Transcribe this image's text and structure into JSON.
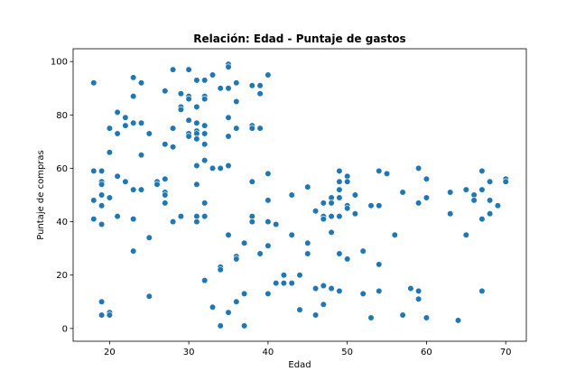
{
  "chart_data": {
    "type": "scatter",
    "title": "Relación: Edad - Puntaje de gastos",
    "xlabel": "Edad",
    "ylabel": "Puntaje de compras",
    "xlim": [
      15.4,
      72.6
    ],
    "ylim": [
      -4.8,
      104.8
    ],
    "xticks": [
      20,
      30,
      40,
      50,
      60,
      70
    ],
    "yticks": [
      0,
      20,
      40,
      60,
      80,
      100
    ],
    "grid": false,
    "marker_color": "#1f77b4",
    "points": [
      [
        18,
        92
      ],
      [
        18,
        59
      ],
      [
        18,
        48
      ],
      [
        18,
        41
      ],
      [
        19,
        59
      ],
      [
        19,
        55
      ],
      [
        19,
        54
      ],
      [
        19,
        50
      ],
      [
        19,
        46
      ],
      [
        19,
        39
      ],
      [
        19,
        10
      ],
      [
        19,
        5
      ],
      [
        20,
        75
      ],
      [
        20,
        66
      ],
      [
        20,
        49
      ],
      [
        20,
        6
      ],
      [
        20,
        5
      ],
      [
        21,
        81
      ],
      [
        21,
        73
      ],
      [
        21,
        57
      ],
      [
        21,
        42
      ],
      [
        22,
        79
      ],
      [
        22,
        76
      ],
      [
        22,
        55
      ],
      [
        23,
        94
      ],
      [
        23,
        87
      ],
      [
        23,
        77
      ],
      [
        23,
        52
      ],
      [
        23,
        41
      ],
      [
        23,
        29
      ],
      [
        24,
        92
      ],
      [
        24,
        77
      ],
      [
        24,
        65
      ],
      [
        24,
        52
      ],
      [
        25,
        73
      ],
      [
        25,
        34
      ],
      [
        25,
        12
      ],
      [
        26,
        55
      ],
      [
        26,
        54
      ],
      [
        27,
        89
      ],
      [
        27,
        69
      ],
      [
        27,
        56
      ],
      [
        27,
        51
      ],
      [
        27,
        50
      ],
      [
        27,
        47
      ],
      [
        28,
        97
      ],
      [
        28,
        75
      ],
      [
        28,
        68
      ],
      [
        28,
        40
      ],
      [
        29,
        88
      ],
      [
        29,
        83
      ],
      [
        29,
        82
      ],
      [
        29,
        42
      ],
      [
        30,
        97
      ],
      [
        30,
        87
      ],
      [
        30,
        86
      ],
      [
        30,
        78
      ],
      [
        30,
        73
      ],
      [
        30,
        72
      ],
      [
        31,
        93
      ],
      [
        31,
        83
      ],
      [
        31,
        77
      ],
      [
        31,
        74
      ],
      [
        31,
        73
      ],
      [
        31,
        71
      ],
      [
        31,
        61
      ],
      [
        31,
        54
      ],
      [
        31,
        42
      ],
      [
        31,
        40
      ],
      [
        32,
        93
      ],
      [
        32,
        87
      ],
      [
        32,
        86
      ],
      [
        32,
        76
      ],
      [
        32,
        73
      ],
      [
        32,
        69
      ],
      [
        32,
        63
      ],
      [
        32,
        47
      ],
      [
        32,
        42
      ],
      [
        32,
        18
      ],
      [
        33,
        95
      ],
      [
        33,
        60
      ],
      [
        33,
        8
      ],
      [
        34,
        90
      ],
      [
        34,
        60
      ],
      [
        34,
        23
      ],
      [
        34,
        22
      ],
      [
        34,
        1
      ],
      [
        35,
        99
      ],
      [
        35,
        98
      ],
      [
        35,
        90
      ],
      [
        35,
        79
      ],
      [
        35,
        72
      ],
      [
        35,
        61
      ],
      [
        35,
        35
      ],
      [
        35,
        6
      ],
      [
        36,
        92
      ],
      [
        36,
        85
      ],
      [
        36,
        75
      ],
      [
        36,
        27
      ],
      [
        36,
        26
      ],
      [
        36,
        10
      ],
      [
        37,
        32
      ],
      [
        37,
        13
      ],
      [
        37,
        1
      ],
      [
        38,
        91
      ],
      [
        38,
        76
      ],
      [
        38,
        75
      ],
      [
        38,
        55
      ],
      [
        38,
        42
      ],
      [
        38,
        40
      ],
      [
        39,
        91
      ],
      [
        39,
        88
      ],
      [
        39,
        75
      ],
      [
        39,
        28
      ],
      [
        40,
        95
      ],
      [
        40,
        58
      ],
      [
        40,
        48
      ],
      [
        40,
        40
      ],
      [
        40,
        31
      ],
      [
        40,
        13
      ],
      [
        41,
        39
      ],
      [
        41,
        17
      ],
      [
        42,
        20
      ],
      [
        42,
        17
      ],
      [
        43,
        50
      ],
      [
        43,
        35
      ],
      [
        43,
        17
      ],
      [
        44,
        20
      ],
      [
        44,
        7
      ],
      [
        45,
        53
      ],
      [
        45,
        32
      ],
      [
        45,
        28
      ],
      [
        46,
        44
      ],
      [
        46,
        15
      ],
      [
        46,
        5
      ],
      [
        47,
        47
      ],
      [
        47,
        42
      ],
      [
        47,
        41
      ],
      [
        47,
        16
      ],
      [
        47,
        9
      ],
      [
        48,
        49
      ],
      [
        48,
        47
      ],
      [
        48,
        42
      ],
      [
        48,
        36
      ],
      [
        48,
        15
      ],
      [
        49,
        59
      ],
      [
        49,
        55
      ],
      [
        49,
        52
      ],
      [
        49,
        49
      ],
      [
        49,
        42
      ],
      [
        49,
        28
      ],
      [
        49,
        14
      ],
      [
        50,
        57
      ],
      [
        50,
        55
      ],
      [
        50,
        46
      ],
      [
        50,
        45
      ],
      [
        50,
        26
      ],
      [
        51,
        50
      ],
      [
        51,
        43
      ],
      [
        52,
        29
      ],
      [
        52,
        13
      ],
      [
        53,
        46
      ],
      [
        53,
        4
      ],
      [
        54,
        59
      ],
      [
        54,
        46
      ],
      [
        54,
        24
      ],
      [
        54,
        14
      ],
      [
        55,
        58
      ],
      [
        56,
        35
      ],
      [
        57,
        51
      ],
      [
        57,
        5
      ],
      [
        58,
        15
      ],
      [
        59,
        60
      ],
      [
        59,
        47
      ],
      [
        59,
        14
      ],
      [
        59,
        11
      ],
      [
        60,
        56
      ],
      [
        60,
        49
      ],
      [
        60,
        4
      ],
      [
        63,
        51
      ],
      [
        63,
        43
      ],
      [
        64,
        3
      ],
      [
        65,
        52
      ],
      [
        65,
        35
      ],
      [
        66,
        50
      ],
      [
        66,
        48
      ],
      [
        67,
        59
      ],
      [
        67,
        52
      ],
      [
        67,
        41
      ],
      [
        67,
        14
      ],
      [
        68,
        55
      ],
      [
        68,
        48
      ],
      [
        68,
        43
      ],
      [
        69,
        46
      ],
      [
        70,
        56
      ],
      [
        70,
        55
      ]
    ]
  }
}
